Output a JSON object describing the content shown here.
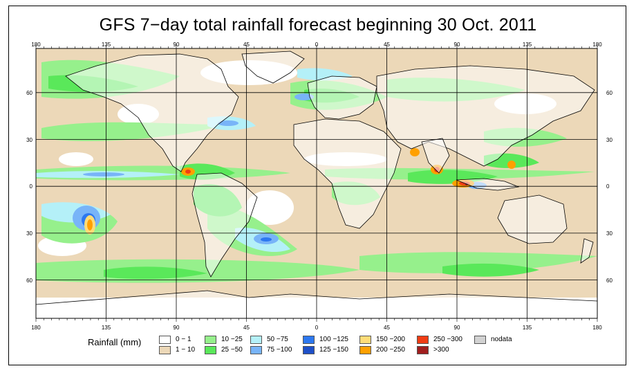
{
  "title": "GFS 7−day total rainfall forecast beginning 30 Oct. 2011",
  "lon_ticks": [
    "180",
    "135",
    "90",
    "45",
    "0",
    "45",
    "90",
    "135",
    "180"
  ],
  "lat_ticks": [
    "60",
    "30",
    "0",
    "30",
    "60"
  ],
  "colors": {
    "ocean_dry": "#ecd8b8",
    "land_dry": "#ffffff",
    "coastline": "#000000",
    "grid": "#000000"
  },
  "legend": {
    "title": "Rainfall (mm)",
    "items": [
      {
        "label": "0 − 1",
        "color": "#ffffff"
      },
      {
        "label": "1 − 10",
        "color": "#ecd8b8"
      },
      {
        "label": "10 −25",
        "color": "#96f08c"
      },
      {
        "label": "25 −50",
        "color": "#5ae85a"
      },
      {
        "label": "50 −75",
        "color": "#b4f0f8"
      },
      {
        "label": "75 −100",
        "color": "#78b4f8"
      },
      {
        "label": "100 −125",
        "color": "#2d78f0"
      },
      {
        "label": "125 −150",
        "color": "#1e50c8"
      },
      {
        "label": "150 −200",
        "color": "#ffdc78"
      },
      {
        "label": "200 −250",
        "color": "#ffa000"
      },
      {
        "label": "250 −300",
        "color": "#f03c14"
      },
      {
        "label": ">300",
        "color": "#a01e1e"
      },
      {
        "label": "nodata",
        "color": "#d2d2d2"
      }
    ]
  }
}
